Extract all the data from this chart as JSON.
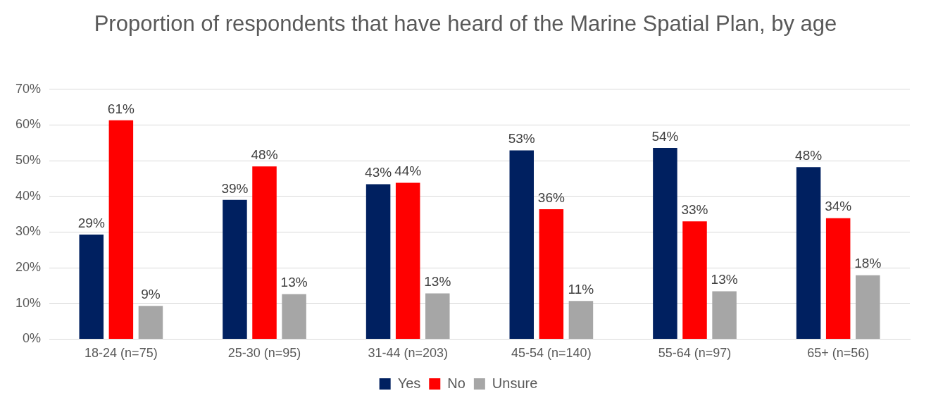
{
  "chart_data": {
    "type": "bar",
    "title": "Proportion of respondents that have heard of the Marine Spatial Plan, by age",
    "categories": [
      "18-24 (n=75)",
      "25-30 (n=95)",
      "31-44 (n=203)",
      "45-54 (n=140)",
      "55-64 (n=97)",
      "65+ (n=56)"
    ],
    "series": [
      {
        "name": "Yes",
        "color": "#002060",
        "values": [
          29.3,
          39,
          43.4,
          52.9,
          53.6,
          48.2
        ],
        "value_labels": [
          "29%",
          "39%",
          "43%",
          "53%",
          "54%",
          "48%"
        ]
      },
      {
        "name": "No",
        "color": "#ff0000",
        "values": [
          61.3,
          48.4,
          43.8,
          36.4,
          33,
          33.9
        ],
        "value_labels": [
          "61%",
          "48%",
          "44%",
          "36%",
          "33%",
          "34%"
        ]
      },
      {
        "name": "Unsure",
        "color": "#a6a6a6",
        "values": [
          9.3,
          12.6,
          12.8,
          10.7,
          13.4,
          17.9
        ],
        "value_labels": [
          "9%",
          "13%",
          "13%",
          "11%",
          "13%",
          "18%"
        ]
      }
    ],
    "ylim": [
      0,
      70
    ],
    "yticks": [
      {
        "value": 0,
        "label": "0%"
      },
      {
        "value": 10,
        "label": "10%"
      },
      {
        "value": 20,
        "label": "20%"
      },
      {
        "value": 30,
        "label": "30%"
      },
      {
        "value": 40,
        "label": "40%"
      },
      {
        "value": 50,
        "label": "50%"
      },
      {
        "value": 60,
        "label": "60%"
      },
      {
        "value": 70,
        "label": "70%"
      }
    ],
    "grid": "y",
    "legend": "bottom"
  }
}
